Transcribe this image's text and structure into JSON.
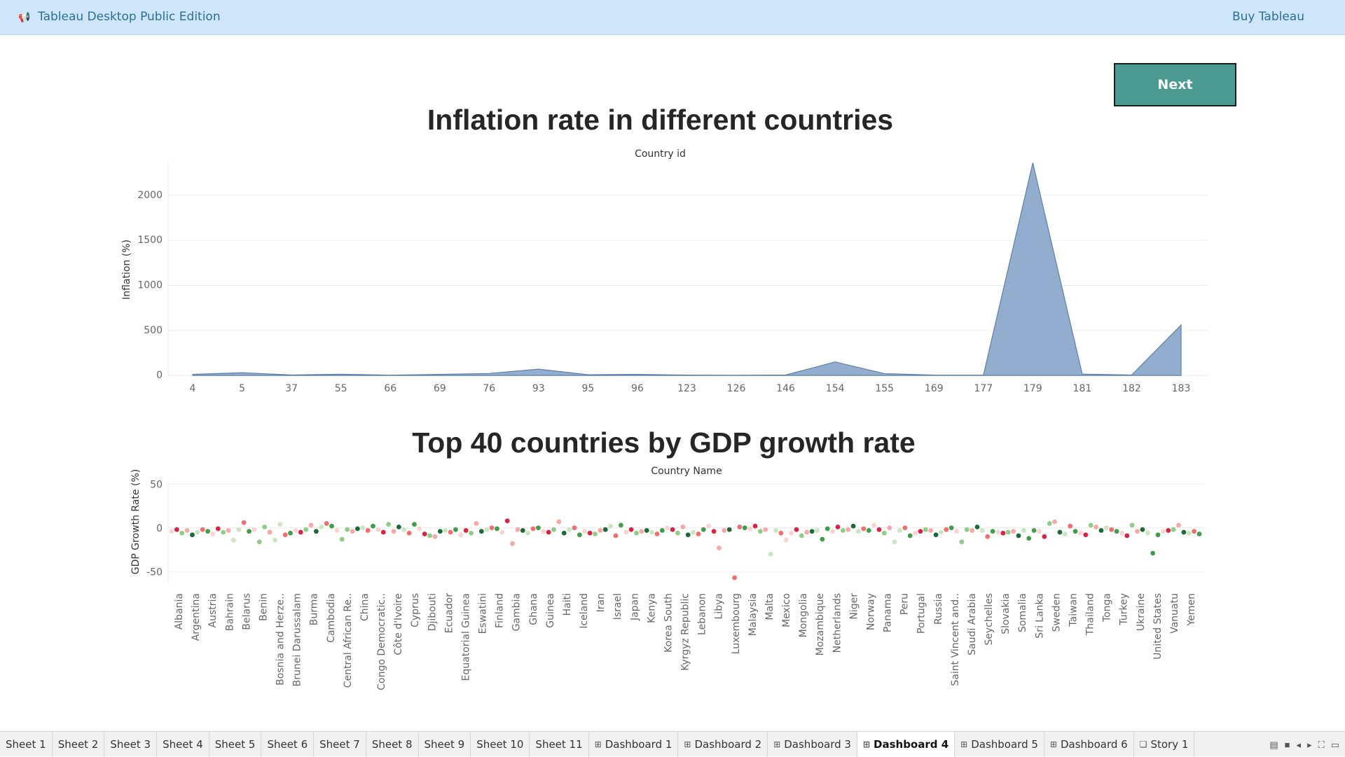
{
  "topbar": {
    "app_title": "Tableau Desktop Public Edition",
    "buy_label": "Buy Tableau",
    "megaphone_icon": "megaphone-icon"
  },
  "next_button": {
    "label": "Next"
  },
  "colors": {
    "area_fill": "#7f9fc4",
    "next_button_bg": "#4a9a92",
    "topbar_bg": "#cfe6fa",
    "topbar_text": "#2a6f97"
  },
  "chart_data": [
    {
      "type": "area",
      "title": "Inflation rate in different countries",
      "xlabel": "Country id",
      "ylabel": "Inflation (%)",
      "x": [
        "4",
        "5",
        "37",
        "55",
        "66",
        "69",
        "76",
        "93",
        "95",
        "96",
        "123",
        "126",
        "146",
        "154",
        "155",
        "169",
        "177",
        "179",
        "181",
        "182",
        "183"
      ],
      "y": [
        12,
        30,
        5,
        14,
        3,
        12,
        22,
        70,
        8,
        12,
        4,
        2,
        5,
        150,
        20,
        4,
        3,
        2360,
        15,
        5,
        560
      ],
      "yticks": [
        0,
        500,
        1000,
        1500,
        2000
      ],
      "ylim": [
        -30,
        2380
      ],
      "grid": true
    },
    {
      "type": "scatter",
      "title": "Top 40 countries by GDP growth rate",
      "xlabel": "Country Name",
      "ylabel": "GDP Growth Rate (%)",
      "categories": [
        "Albania",
        "Argentina",
        "Austria",
        "Bahrain",
        "Belarus",
        "Benin",
        "Bosnia and Herze..",
        "Brunei Darussalam",
        "Burma",
        "Cambodia",
        "Central African Re..",
        "China",
        "Congo Democratic..",
        "Côte d'Ivoire",
        "Cyprus",
        "Djibouti",
        "Ecuador",
        "Equatorial Guinea",
        "Eswatini",
        "Finland",
        "Gambia",
        "Ghana",
        "Guinea",
        "Haiti",
        "Iceland",
        "Iran",
        "Israel",
        "Japan",
        "Kenya",
        "Korea South",
        "Kyrgyz Republic",
        "Lebanon",
        "Libya",
        "Luxembourg",
        "Malaysia",
        "Malta",
        "Mexico",
        "Mongolia",
        "Mozambique",
        "Netherlands",
        "Niger",
        "Norway",
        "Panama",
        "Peru",
        "Portugal",
        "Russia",
        "Saint Vincent and..",
        "Saudi Arabia",
        "Seychelles",
        "Slovakia",
        "Somalia",
        "Sri Lanka",
        "Sweden",
        "Taiwan",
        "Thailand",
        "Tonga",
        "Turkey",
        "Ukraine",
        "United States",
        "Vanuatu",
        "Yemen"
      ],
      "yticks": [
        50,
        0,
        -50
      ],
      "ylim": [
        -65,
        55
      ],
      "grid": true,
      "values": [
        [
          -4,
          -2,
          -6,
          -3,
          -8,
          -5,
          -2,
          -4,
          -7,
          -1
        ],
        [
          -5,
          -3,
          -14,
          -2,
          6,
          -4,
          -2,
          -16,
          1,
          -5
        ],
        [
          -14,
          4,
          -8,
          -6,
          -3,
          -5,
          -2,
          3,
          -4,
          1
        ],
        [
          5,
          2,
          -3,
          -13,
          -2,
          -4,
          -1,
          0,
          -3,
          2
        ],
        [
          -2,
          -5,
          4,
          -4,
          1,
          -2,
          -6,
          4,
          -1,
          -7
        ],
        [
          -9,
          -10,
          -4,
          -3,
          -5,
          -2,
          -8,
          -3,
          -6,
          5
        ],
        [
          -4,
          -2,
          0,
          -1,
          -5,
          8,
          -18,
          -2,
          -3,
          -6
        ],
        [
          -1,
          0,
          -4,
          -5,
          -2,
          7,
          -6,
          -2,
          0,
          -8
        ],
        [
          -4,
          -6,
          -7,
          -3,
          -2,
          2,
          -9,
          3,
          -5,
          -2
        ],
        [
          -6,
          -4,
          -3,
          -5,
          -7,
          -3,
          0,
          -2,
          -6,
          1
        ],
        [
          -8,
          -5,
          -7,
          -2,
          2,
          -4,
          -23,
          -3,
          -2,
          -57
        ],
        [
          1,
          0,
          -1,
          2,
          -4,
          -2,
          -30,
          -3,
          -6,
          -14
        ],
        [
          -6,
          -2,
          -9,
          -5,
          -4,
          -3,
          -13,
          -1,
          -4,
          1
        ],
        [
          -3,
          -2,
          2,
          -4,
          -1,
          -3,
          3,
          -2,
          -6,
          0
        ],
        [
          -16,
          -3,
          0,
          -9,
          -6,
          -4,
          -2,
          -3,
          -8,
          -5
        ],
        [
          -2,
          0,
          -4,
          -16,
          -2,
          -3,
          1,
          -3,
          -10,
          -4
        ],
        [
          -5,
          -6,
          -5,
          -4,
          -9,
          -3,
          -12,
          -3,
          -4,
          -10
        ],
        [
          5,
          7,
          -5,
          -7,
          2,
          -4,
          -6,
          -8,
          3,
          1
        ],
        [
          -3,
          0,
          -2,
          -4,
          -6,
          -9,
          3,
          -4,
          -2,
          -6
        ],
        [
          -29,
          -8,
          -4,
          -3,
          -2,
          3,
          -5,
          -6,
          -4,
          -7
        ]
      ]
    }
  ],
  "tabs": [
    {
      "label": "Sheet 1",
      "icon": ""
    },
    {
      "label": "Sheet 2",
      "icon": ""
    },
    {
      "label": "Sheet 3",
      "icon": ""
    },
    {
      "label": "Sheet 4",
      "icon": ""
    },
    {
      "label": "Sheet 5",
      "icon": ""
    },
    {
      "label": "Sheet 6",
      "icon": ""
    },
    {
      "label": "Sheet 7",
      "icon": ""
    },
    {
      "label": "Sheet 8",
      "icon": ""
    },
    {
      "label": "Sheet 9",
      "icon": ""
    },
    {
      "label": "Sheet 10",
      "icon": ""
    },
    {
      "label": "Sheet 11",
      "icon": ""
    },
    {
      "label": "Dashboard 1",
      "icon": "dashboard-icon"
    },
    {
      "label": "Dashboard 2",
      "icon": "dashboard-icon"
    },
    {
      "label": "Dashboard 3",
      "icon": "dashboard-icon"
    },
    {
      "label": "Dashboard 4",
      "icon": "dashboard-icon",
      "active": true
    },
    {
      "label": "Dashboard 5",
      "icon": "dashboard-icon"
    },
    {
      "label": "Dashboard 6",
      "icon": "dashboard-icon"
    },
    {
      "label": "Story 1",
      "icon": "story-icon"
    }
  ],
  "tab_controls": [
    "show-filmstrip-icon",
    "show-tabs-icon",
    "scroll-left-icon",
    "scroll-right-icon",
    "fullscreen-icon",
    "present-icon"
  ]
}
